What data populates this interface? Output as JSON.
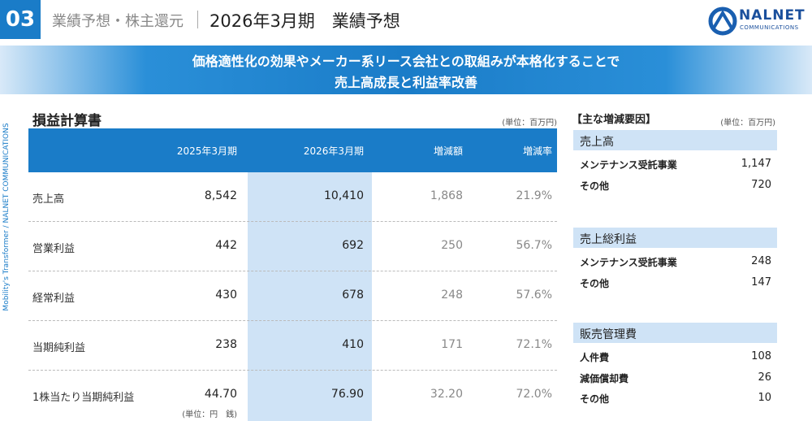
{
  "header": {
    "number": "03",
    "section": "業績予想・株主還元",
    "title": "2026年3月期　業績予想",
    "logo_name": "NALNET",
    "logo_sub": "COMMUNICATIONS"
  },
  "side_text": "Mobility's Transformer / NALNET COMMUNICATIONS",
  "banner": [
    "価格適性化の効果やメーカー系リース会社との取組みが本格化することで",
    "売上高成長と利益率改善"
  ],
  "table": {
    "title": "損益計算書",
    "unit": "(単位：百万円)",
    "columns": [
      "",
      "2025年3月期",
      "2026年3月期",
      "増減額",
      "増減率"
    ],
    "rows": [
      [
        "売上高",
        "8,542",
        "10,410",
        "1,868",
        "21.9%"
      ],
      [
        "営業利益",
        "442",
        "692",
        "250",
        "56.7%"
      ],
      [
        "経常利益",
        "430",
        "678",
        "248",
        "57.6%"
      ],
      [
        "当期純利益",
        "238",
        "410",
        "171",
        "72.1%"
      ],
      [
        "1株当たり当期純利益",
        "44.70",
        "76.90",
        "32.20",
        "72.0%"
      ]
    ],
    "note": "(単位：円　銭)"
  },
  "factors": {
    "title": "【主な増減要因】",
    "unit": "(単位：百万円)",
    "sections": [
      {
        "heading": "売上高",
        "items": [
          [
            "メンテナンス受託事業",
            "1,147"
          ],
          [
            "その他",
            "720"
          ]
        ]
      },
      {
        "heading": "売上総利益",
        "items": [
          [
            "メンテナンス受託事業",
            "248"
          ],
          [
            "その他",
            "147"
          ]
        ]
      },
      {
        "heading": "販売管理費",
        "items": [
          [
            "人件費",
            "108"
          ],
          [
            "減価償却費",
            "26"
          ],
          [
            "その他",
            "10"
          ]
        ]
      }
    ]
  }
}
